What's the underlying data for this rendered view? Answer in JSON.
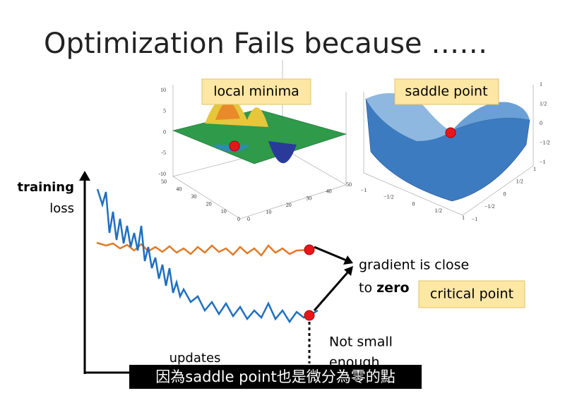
{
  "title": "Optimization Fails because ……",
  "plots": [
    {
      "label": "local minima",
      "z_ticks": [
        "10",
        "5",
        "0",
        "-5",
        "-10"
      ],
      "x_ticks": [
        "50",
        "40",
        "30",
        "20",
        "10",
        "0"
      ],
      "y_ticks": [
        "0",
        "10",
        "20",
        "30",
        "40",
        "50"
      ]
    },
    {
      "label": "saddle point",
      "z_ticks": [
        "1",
        "1/2",
        "0",
        "−1/2",
        "−1"
      ],
      "x_ticks": [
        "−1",
        "−1/2",
        "0",
        "1/2",
        "1"
      ],
      "y_ticks": [
        "−1",
        "−1/2",
        "0",
        "1/2",
        "1"
      ]
    }
  ],
  "loss_chart": {
    "y_label_bold": "training",
    "y_label": "loss",
    "x_label": "updates"
  },
  "annotations": {
    "gradient_line1": "gradient is close",
    "gradient_to": "to",
    "gradient_zero": "zero",
    "critical": "critical point",
    "not_small_1": "Not small",
    "not_small_2": "enough"
  },
  "subtitle": "因為saddle point也是微分為零的點"
}
